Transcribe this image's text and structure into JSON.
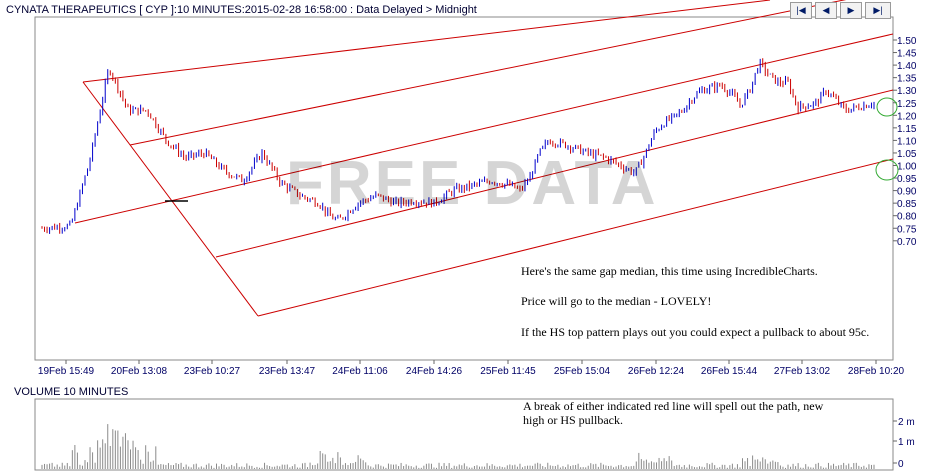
{
  "title": "CYNATA THERAPEUTICS [ CYP ]:10 MINUTES:2015-02-28 16:58:00 : Data Delayed > Midnight",
  "nav_buttons": [
    "|◀",
    "◀",
    "▶",
    "▶|"
  ],
  "watermark": "FREE DATA",
  "annotations": [
    "Here's the same gap median, this time using IncredibleCharts.",
    "Price will go to the median - LOVELY!",
    "If the HS top pattern plays out you could expect a pullback to about 95c.",
    "A break of either indicated red line will spell out the path, new high or HS pullback."
  ],
  "volume_title": "VOLUME 10 MINUTES",
  "colors": {
    "up_bar": "#0000cc",
    "down_bar": "#cc0000",
    "trend_line": "#cc0000",
    "circle": "#33aa33",
    "axis_text": "#000066"
  },
  "chart_data": {
    "type": "ohlc_bar",
    "ylim": [
      0.68,
      1.52
    ],
    "y_ticks": [
      "1.50",
      "1.45",
      "1.40",
      "1.35",
      "1.30",
      "1.25",
      "1.20",
      "1.15",
      "1.10",
      "1.05",
      "1.00",
      "0.95",
      "0.90",
      "0.85",
      "0.80",
      "0.75",
      "0.70"
    ],
    "x_ticks": [
      "19Feb 15:49",
      "20Feb 13:08",
      "23Feb 10:27",
      "23Feb 13:47",
      "24Feb 11:06",
      "24Feb 14:26",
      "25Feb 11:45",
      "25Feb 15:04",
      "26Feb 12:24",
      "26Feb 15:44",
      "27Feb 13:02",
      "28Feb 10:20"
    ],
    "price_path": [
      [
        0,
        0.75
      ],
      [
        3,
        0.76
      ],
      [
        5,
        1.02
      ],
      [
        7,
        1.39
      ],
      [
        9,
        1.22
      ],
      [
        11,
        1.22
      ],
      [
        13,
        1.1
      ],
      [
        15,
        1.03
      ],
      [
        17,
        1.05
      ],
      [
        19,
        0.98
      ],
      [
        21,
        0.94
      ],
      [
        23,
        1.05
      ],
      [
        25,
        0.93
      ],
      [
        27,
        0.88
      ],
      [
        29,
        0.85
      ],
      [
        30,
        0.8
      ],
      [
        31,
        0.78
      ],
      [
        33,
        0.85
      ],
      [
        35,
        0.88
      ],
      [
        37,
        0.85
      ],
      [
        39,
        0.86
      ],
      [
        41,
        0.85
      ],
      [
        43,
        0.9
      ],
      [
        45,
        0.92
      ],
      [
        47,
        0.94
      ],
      [
        49,
        0.92
      ],
      [
        50,
        0.9
      ],
      [
        51,
        0.95
      ],
      [
        52,
        1.05
      ],
      [
        53,
        1.1
      ],
      [
        55,
        1.08
      ],
      [
        57,
        1.05
      ],
      [
        59,
        1.03
      ],
      [
        61,
        0.99
      ],
      [
        62,
        0.97
      ],
      [
        63,
        1.04
      ],
      [
        64,
        1.13
      ],
      [
        65,
        1.17
      ],
      [
        66,
        1.19
      ],
      [
        67,
        1.22
      ],
      [
        68,
        1.27
      ],
      [
        69,
        1.3
      ],
      [
        71,
        1.32
      ],
      [
        72,
        1.29
      ],
      [
        73,
        1.24
      ],
      [
        74,
        1.3
      ],
      [
        75,
        1.41
      ],
      [
        76,
        1.36
      ],
      [
        77,
        1.33
      ],
      [
        78,
        1.33
      ],
      [
        79,
        1.23
      ],
      [
        81,
        1.25
      ],
      [
        82,
        1.3
      ],
      [
        83,
        1.26
      ],
      [
        84,
        1.22
      ],
      [
        85,
        1.23
      ],
      [
        86,
        1.24
      ],
      [
        87,
        1.25
      ]
    ],
    "price_axis_right": true,
    "volume": {
      "y_ticks": [
        "2 m",
        "1 m",
        "0"
      ],
      "ylim": [
        0,
        3
      ]
    }
  }
}
